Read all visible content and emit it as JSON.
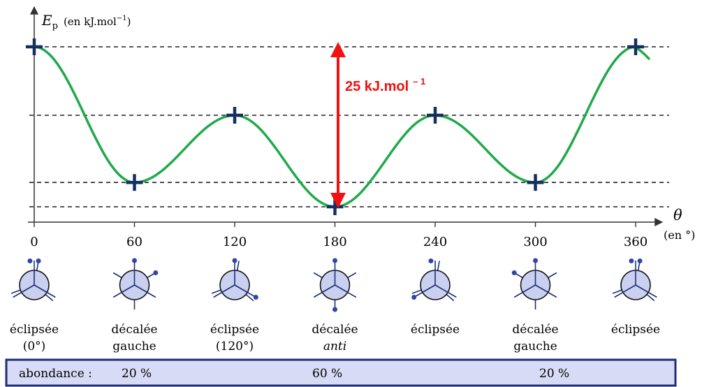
{
  "colors": {
    "curve": "#1faa4a",
    "marker": "#15305f",
    "arrow": "#f21010",
    "dashes": "#222222",
    "newman_fill": "#c9d0f0",
    "newman_stroke": "#1f2f73",
    "newman_atom": "#2f46a6",
    "abundance_fill": "#d8dbf5",
    "abundance_stroke": "#1f2f73"
  },
  "axis": {
    "y_symbol": "E",
    "y_subscript": "p",
    "y_unit_prefix": "(en kJ.mol",
    "y_unit_exponent": "−1",
    "y_unit_suffix": ")",
    "x_symbol": "θ",
    "x_unit": "(en °)",
    "ticks": [
      "0",
      "60",
      "120",
      "180",
      "240",
      "300",
      "360"
    ]
  },
  "arrow_label": {
    "text": "25 kJ.mol",
    "exponent": "– 1"
  },
  "chart_data": {
    "type": "line",
    "xlabel": "θ (en °)",
    "ylabel": "Ep (en kJ.mol−1)",
    "xlim": [
      0,
      360
    ],
    "extrema": [
      {
        "x": 0,
        "y": 25,
        "kind": "max"
      },
      {
        "x": 60,
        "y": 3.8,
        "kind": "min"
      },
      {
        "x": 120,
        "y": 14.3,
        "kind": "max"
      },
      {
        "x": 180,
        "y": 0,
        "kind": "min"
      },
      {
        "x": 240,
        "y": 14.3,
        "kind": "max"
      },
      {
        "x": 300,
        "y": 3.8,
        "kind": "min"
      },
      {
        "x": 360,
        "y": 25,
        "kind": "max"
      }
    ],
    "levels": [
      25,
      14.3,
      3.8,
      0
    ],
    "energy_difference": 25
  },
  "conformations": [
    {
      "name": "éclipsée",
      "name_italic": false,
      "second_line": "(0°)",
      "second_italic": false,
      "type": "eclipsed",
      "front_angles": [
        90,
        210,
        330
      ],
      "back_angles": [
        80,
        200,
        320
      ],
      "atom_angles": [
        80,
        100
      ]
    },
    {
      "name": "décalée",
      "name_italic": false,
      "second_line": "gauche",
      "second_italic": false,
      "type": "staggered",
      "front_angles": [
        90,
        210,
        330
      ],
      "back_angles": [
        30,
        150,
        270
      ],
      "atom_angles": [
        90,
        30
      ]
    },
    {
      "name": "éclipsée",
      "name_italic": false,
      "second_line": "(120°)",
      "second_italic": false,
      "type": "eclipsed",
      "front_angles": [
        90,
        210,
        330
      ],
      "back_angles": [
        80,
        200,
        320
      ],
      "atom_angles": [
        90,
        330
      ]
    },
    {
      "name": "décalée",
      "name_italic": false,
      "second_line": "anti",
      "second_italic": true,
      "type": "staggered",
      "front_angles": [
        90,
        210,
        330
      ],
      "back_angles": [
        30,
        150,
        270
      ],
      "atom_angles": [
        90,
        270
      ]
    },
    {
      "name": "éclipsée",
      "name_italic": false,
      "second_line": "",
      "second_italic": false,
      "type": "eclipsed",
      "front_angles": [
        90,
        210,
        330
      ],
      "back_angles": [
        80,
        200,
        320
      ],
      "atom_angles": [
        100,
        210
      ]
    },
    {
      "name": "décalée",
      "name_italic": false,
      "second_line": "gauche",
      "second_italic": false,
      "type": "staggered",
      "front_angles": [
        90,
        210,
        330
      ],
      "back_angles": [
        30,
        150,
        270
      ],
      "atom_angles": [
        90,
        150
      ]
    },
    {
      "name": "éclipsée",
      "name_italic": false,
      "second_line": "",
      "second_italic": false,
      "type": "eclipsed",
      "front_angles": [
        90,
        210,
        330
      ],
      "back_angles": [
        80,
        200,
        320
      ],
      "atom_angles": [
        80,
        100
      ]
    }
  ],
  "abundance": {
    "label": "abondance :",
    "values": [
      "20 %",
      "60 %",
      "20 %"
    ]
  }
}
